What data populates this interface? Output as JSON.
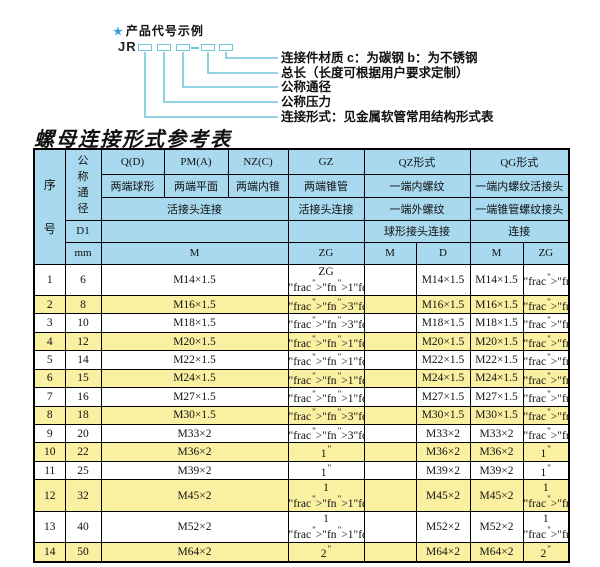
{
  "colors": {
    "header_bg": "#a8d9ef",
    "row_alt": "#faf0a2",
    "line_color": "#6fc6da",
    "star_color": "#3ba3d9"
  },
  "diagram": {
    "star": "★",
    "title": "产品代号示例",
    "prefix": "JR",
    "labels": [
      "连接件材质  c：为碳钢  b：为不锈钢",
      "总长（长度可根据用户要求定制）",
      "公称通径",
      "公称压力",
      "连接形式：见金属软管常用结构形式表"
    ]
  },
  "table": {
    "title": "螺母连接形式参考表",
    "header": {
      "xuhao": "序号",
      "tongjing": "公称通径",
      "d1": "D1",
      "mm": "mm",
      "qd": "Q(D)",
      "pma": "PM(A)",
      "nzc": "NZ(C)",
      "gz": "GZ",
      "qz": "QZ形式",
      "qg": "QG形式",
      "qd_sub": "两端球形",
      "pma_sub": "两端平面",
      "nzc_sub": "两端内锥",
      "gz_sub": "两端锥管",
      "qz_sub1": "一端内螺纹",
      "qg_sub1": "一端内螺纹活接头",
      "huojietou": "活接头连接",
      "gz_huojietou": "活接头连接",
      "qz_sub2": "一端外螺纹",
      "qg_sub2": "一端锥管螺纹接头",
      "qz_sub3": "球形接头连接",
      "qg_sub3": "连接",
      "m": "M",
      "zg": "ZG",
      "qz_m": "M",
      "qz_d": "D",
      "qg_m": "M",
      "qg_zg": "ZG"
    },
    "rows": [
      {
        "no": "1",
        "dn": "6",
        "m": "M14×1.5",
        "zg": "ZG 1/4\"",
        "qz_m": "",
        "qz_d": "M14×1.5",
        "qg_m": "M14×1.5",
        "qg_zg": "1/4\""
      },
      {
        "no": "2",
        "dn": "8",
        "m": "M16×1.5",
        "zg": "3/8\"",
        "qz_m": "",
        "qz_d": "M16×1.5",
        "qg_m": "M16×1.5",
        "qg_zg": "3/8\""
      },
      {
        "no": "3",
        "dn": "10",
        "m": "M18×1.5",
        "zg": "3/8\"",
        "qz_m": "",
        "qz_d": "M18×1.5",
        "qg_m": "M18×1.5",
        "qg_zg": "3/8\""
      },
      {
        "no": "4",
        "dn": "12",
        "m": "M20×1.5",
        "zg": "1/2\"",
        "qz_m": "",
        "qz_d": "M20×1.5",
        "qg_m": "M20×1.5",
        "qg_zg": "1/2\""
      },
      {
        "no": "5",
        "dn": "14",
        "m": "M22×1.5",
        "zg": "1/2\"",
        "qz_m": "",
        "qz_d": "M22×1.5",
        "qg_m": "M22×1.5",
        "qg_zg": "1/2\""
      },
      {
        "no": "6",
        "dn": "15",
        "m": "M24×1.5",
        "zg": "1/2\"",
        "qz_m": "",
        "qz_d": "M24×1.5",
        "qg_m": "M24×1.5",
        "qg_zg": "1/2\""
      },
      {
        "no": "7",
        "dn": "16",
        "m": "M27×1.5",
        "zg": "1/2\"",
        "qz_m": "",
        "qz_d": "M27×1.5",
        "qg_m": "M27×1.5",
        "qg_zg": "1/2\""
      },
      {
        "no": "8",
        "dn": "18",
        "m": "M30×1.5",
        "zg": "3/4\"",
        "qz_m": "",
        "qz_d": "M30×1.5",
        "qg_m": "M30×1.5",
        "qg_zg": "3/4\""
      },
      {
        "no": "9",
        "dn": "20",
        "m": "M33×2",
        "zg": "3/4\"",
        "qz_m": "",
        "qz_d": "M33×2",
        "qg_m": "M33×2",
        "qg_zg": "3/4\""
      },
      {
        "no": "10",
        "dn": "22",
        "m": "M36×2",
        "zg": "1\"",
        "qz_m": "",
        "qz_d": "M36×2",
        "qg_m": "M36×2",
        "qg_zg": "1\""
      },
      {
        "no": "11",
        "dn": "25",
        "m": "M39×2",
        "zg": "1\"",
        "qz_m": "",
        "qz_d": "M39×2",
        "qg_m": "M39×2",
        "qg_zg": "1\""
      },
      {
        "no": "12",
        "dn": "32",
        "m": "M45×2",
        "zg": "1 1/4\"",
        "qz_m": "",
        "qz_d": "M45×2",
        "qg_m": "M45×2",
        "qg_zg": "1 1/4\""
      },
      {
        "no": "13",
        "dn": "40",
        "m": "M52×2",
        "zg": "1 1/2\"",
        "qz_m": "",
        "qz_d": "M52×2",
        "qg_m": "M52×2",
        "qg_zg": "1 1/2\""
      },
      {
        "no": "14",
        "dn": "50",
        "m": "M64×2",
        "zg": "2\"",
        "qz_m": "",
        "qz_d": "M64×2",
        "qg_m": "M64×2",
        "qg_zg": "2\""
      }
    ]
  }
}
